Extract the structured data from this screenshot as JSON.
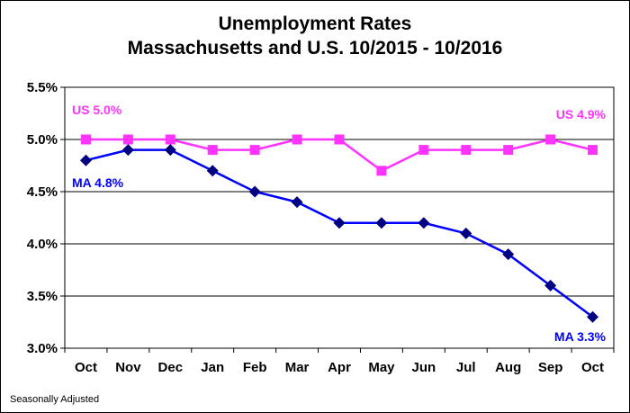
{
  "chart_data": {
    "type": "line",
    "title": [
      "Unemployment Rates",
      "Massachusetts and U.S. 10/2015 - 10/2016"
    ],
    "categories": [
      "Oct",
      "Nov",
      "Dec",
      "Jan",
      "Feb",
      "Mar",
      "Apr",
      "May",
      "Jun",
      "Jul",
      "Aug",
      "Sep",
      "Oct"
    ],
    "series": [
      {
        "label": "US",
        "color": "#ff33ff",
        "marker": "square",
        "values": [
          5.0,
          5.0,
          5.0,
          4.9,
          4.9,
          5.0,
          5.0,
          4.7,
          4.9,
          4.9,
          4.9,
          5.0,
          4.9
        ]
      },
      {
        "label": "MA",
        "color": "#0000ff",
        "marker_color": "#000080",
        "marker": "diamond",
        "values": [
          4.8,
          4.9,
          4.9,
          4.7,
          4.5,
          4.4,
          4.2,
          4.2,
          4.2,
          4.1,
          3.9,
          3.6,
          3.3
        ]
      }
    ],
    "ylim": [
      3.0,
      5.5
    ],
    "yticks": [
      "3.0%",
      "3.5%",
      "4.0%",
      "4.5%",
      "5.0%",
      "5.5%"
    ],
    "grid": true,
    "annotations": [
      {
        "series": "US",
        "text_label": "US",
        "text_value": "5.0%",
        "position": "start"
      },
      {
        "series": "US",
        "text_label": "US",
        "text_value": "4.9%",
        "position": "end"
      },
      {
        "series": "MA",
        "text_label": "MA",
        "text_value": "4.8%",
        "position": "start"
      },
      {
        "series": "MA",
        "text_label": "MA",
        "text_value": "3.3%",
        "position": "end"
      }
    ],
    "footnote": "Seasonally  Adjusted"
  }
}
